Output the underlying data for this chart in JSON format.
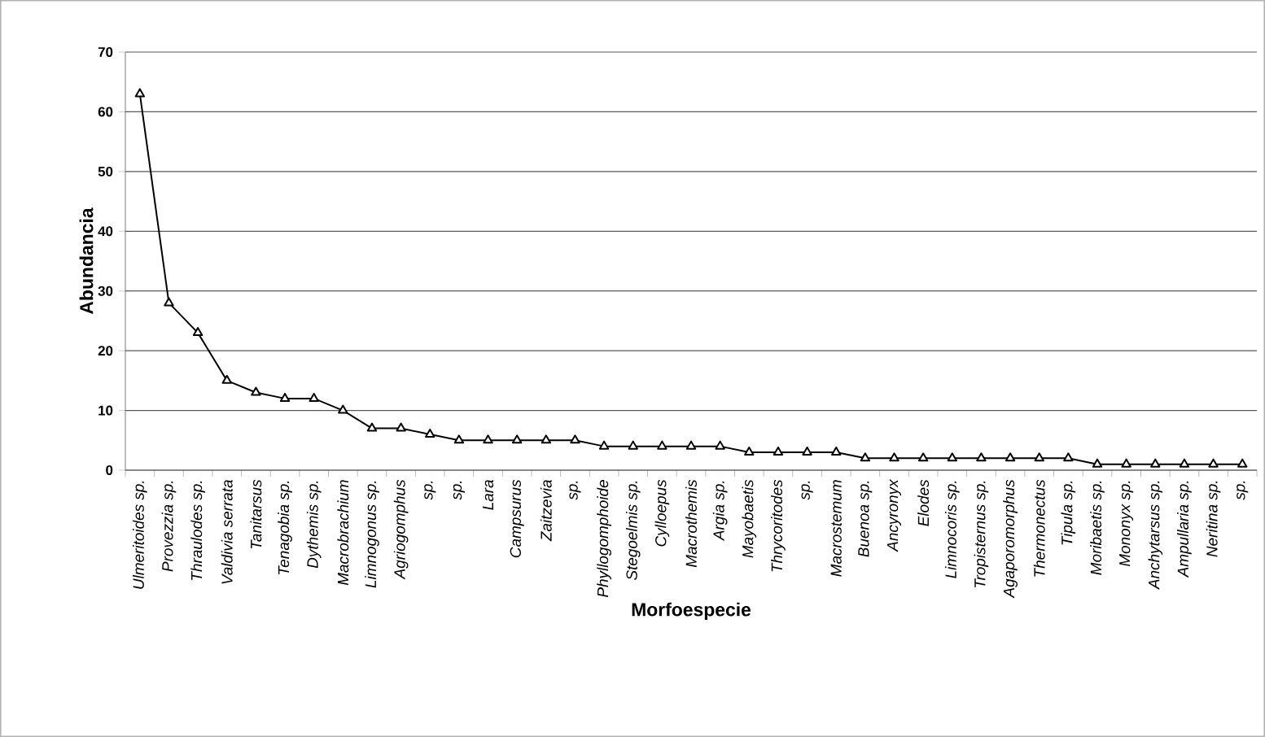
{
  "chart_data": {
    "type": "line",
    "xlabel": "Morfoespecie",
    "ylabel": "Abundancia",
    "categories": [
      "Ulmeritoides sp.",
      "Provezzia sp.",
      "Thraulodes sp.",
      "Valdivia serrata",
      "Tanitarsus",
      "Tenagobia sp.",
      "Dythemis sp.",
      "Macrobrachium",
      "Limnogonus sp.",
      "Agriogomphus",
      "sp.",
      "sp.",
      "Lara",
      "Campsurus",
      "Zaitzevia",
      "sp.",
      "Phyllogomphoide",
      "Stegoelmis sp.",
      "Cylloepus",
      "Macrothemis",
      "Argia sp.",
      "Mayobaetis",
      "Thrycoritodes",
      "sp.",
      "Macrostemum",
      "Buenoa sp.",
      "Ancyronyx",
      "Elodes",
      "Limnocoris sp.",
      "Tropisternus sp.",
      "Agaporomorphus",
      "Thermonectus",
      "Tipula sp.",
      "Moribaetis sp.",
      "Mononyx sp.",
      "Anchytarsus sp.",
      "Ampullaria sp.",
      "Neritina sp.",
      "sp."
    ],
    "values": [
      63,
      28,
      23,
      15,
      13,
      12,
      12,
      10,
      7,
      7,
      6,
      5,
      5,
      5,
      5,
      5,
      4,
      4,
      4,
      4,
      4,
      3,
      3,
      3,
      3,
      2,
      2,
      2,
      2,
      2,
      2,
      2,
      2,
      1,
      1,
      1,
      1,
      1,
      1
    ],
    "color": "#000000",
    "marker": "triangle",
    "line_style": "solid",
    "ylim": [
      0,
      70
    ],
    "yticks": [
      0,
      10,
      20,
      30,
      40,
      50,
      60,
      70
    ],
    "grid": "y"
  }
}
